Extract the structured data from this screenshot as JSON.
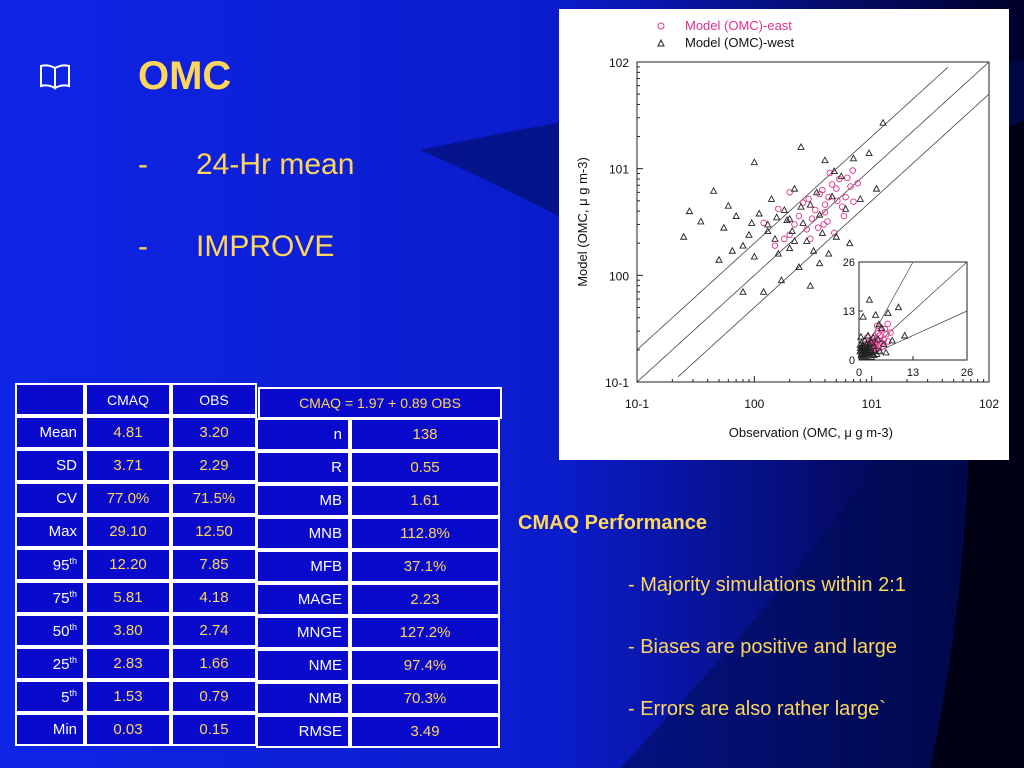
{
  "slide": {
    "title": "OMC",
    "bullets": [
      "24-Hr mean",
      "IMPROVE"
    ],
    "book_icon": "book-icon"
  },
  "stats_table": {
    "headers": [
      "",
      "CMAQ",
      "OBS"
    ],
    "rows": [
      {
        "label": "Mean",
        "sup": "",
        "cmaq": "4.81",
        "obs": "3.20"
      },
      {
        "label": "SD",
        "sup": "",
        "cmaq": "3.71",
        "obs": "2.29"
      },
      {
        "label": "CV",
        "sup": "",
        "cmaq": "77.0%",
        "obs": "71.5%"
      },
      {
        "label": "Max",
        "sup": "",
        "cmaq": "29.10",
        "obs": "12.50"
      },
      {
        "label": "95",
        "sup": "th",
        "cmaq": "12.20",
        "obs": "7.85"
      },
      {
        "label": "75",
        "sup": "th",
        "cmaq": "5.81",
        "obs": "4.18"
      },
      {
        "label": "50",
        "sup": "th",
        "cmaq": "3.80",
        "obs": "2.74"
      },
      {
        "label": "25",
        "sup": "th",
        "cmaq": "2.83",
        "obs": "1.66"
      },
      {
        "label": "5",
        "sup": "th",
        "cmaq": "1.53",
        "obs": "0.79"
      },
      {
        "label": "Min",
        "sup": "",
        "cmaq": "0.03",
        "obs": "0.15"
      }
    ]
  },
  "metrics_table": {
    "equation": "CMAQ  =  1.97 +  0.89  OBS",
    "rows": [
      {
        "label": "n",
        "value": "138"
      },
      {
        "label": "R",
        "value": "0.55"
      },
      {
        "label": "MB",
        "value": "1.61"
      },
      {
        "label": "MNB",
        "value": "112.8%"
      },
      {
        "label": "MFB",
        "value": "37.1%"
      },
      {
        "label": "MAGE",
        "value": "2.23"
      },
      {
        "label": "MNGE",
        "value": "127.2%"
      },
      {
        "label": "NME",
        "value": "97.4%"
      },
      {
        "label": "NMB",
        "value": "70.3%"
      },
      {
        "label": "RMSE",
        "value": "3.49"
      }
    ]
  },
  "performance": {
    "heading": "CMAQ Performance",
    "points": [
      "-  Majority simulations within 2:1",
      "-  Biases are positive and large",
      "-  Errors are also rather large`"
    ]
  },
  "colors": {
    "east": "#e0338c",
    "west": "#222222",
    "text_accent": "#ffd65c",
    "table_bg": "#0a0acc"
  },
  "chart_data": {
    "type": "scatter",
    "xscale": "log",
    "yscale": "log",
    "xlim": [
      0.1,
      100
    ],
    "ylim": [
      0.1,
      100
    ],
    "xlabel": "Observation (OMC, μ g m-3)",
    "ylabel": "Model (OMC, μ g m-3)",
    "xticks": [
      "10-1",
      "100",
      "101",
      "102"
    ],
    "yticks": [
      "10-1",
      "100",
      "101",
      "102"
    ],
    "ref_lines": [
      "1:1",
      "2:1",
      "1:2"
    ],
    "legend_position": "top",
    "series": [
      {
        "name": "Model (OMC)-east",
        "marker": "circle",
        "points": [
          [
            1.2,
            3.1
          ],
          [
            1.6,
            4.2
          ],
          [
            2.0,
            2.4
          ],
          [
            2.4,
            3.6
          ],
          [
            2.9,
            5.2
          ],
          [
            3.3,
            4.1
          ],
          [
            3.8,
            6.3
          ],
          [
            4.2,
            3.2
          ],
          [
            4.6,
            7.1
          ],
          [
            5.1,
            5.0
          ],
          [
            5.6,
            4.4
          ],
          [
            6.2,
            8.2
          ],
          [
            3.0,
            2.2
          ],
          [
            3.5,
            2.8
          ],
          [
            4.0,
            3.9
          ],
          [
            2.6,
            4.8
          ],
          [
            5.0,
            6.5
          ],
          [
            5.8,
            3.6
          ],
          [
            4.4,
            9.1
          ],
          [
            3.1,
            3.4
          ],
          [
            2.2,
            3.0
          ],
          [
            1.8,
            2.2
          ],
          [
            6.0,
            5.4
          ],
          [
            6.6,
            6.8
          ],
          [
            7.0,
            4.9
          ],
          [
            7.6,
            7.3
          ],
          [
            4.8,
            2.5
          ],
          [
            3.6,
            5.8
          ],
          [
            2.8,
            2.7
          ],
          [
            4.0,
            4.6
          ],
          [
            1.5,
            1.9
          ],
          [
            2.0,
            6.0
          ],
          [
            5.3,
            8.0
          ],
          [
            6.9,
            9.6
          ],
          [
            4.3,
            5.4
          ],
          [
            3.9,
            3.0
          ]
        ]
      },
      {
        "name": "Model (OMC)-west",
        "marker": "triangle",
        "points": [
          [
            0.25,
            2.3
          ],
          [
            0.28,
            4.0
          ],
          [
            0.35,
            3.2
          ],
          [
            0.45,
            6.2
          ],
          [
            0.55,
            2.8
          ],
          [
            0.6,
            4.5
          ],
          [
            0.7,
            3.6
          ],
          [
            0.8,
            1.9
          ],
          [
            0.9,
            2.4
          ],
          [
            1.0,
            1.5
          ],
          [
            1.1,
            3.8
          ],
          [
            1.2,
            0.7
          ],
          [
            1.3,
            3.0
          ],
          [
            1.4,
            5.2
          ],
          [
            1.5,
            2.2
          ],
          [
            1.6,
            1.6
          ],
          [
            1.7,
            0.9
          ],
          [
            1.8,
            4.1
          ],
          [
            1.9,
            3.3
          ],
          [
            2.0,
            1.8
          ],
          [
            2.1,
            2.6
          ],
          [
            2.2,
            6.5
          ],
          [
            2.4,
            1.2
          ],
          [
            2.5,
            4.4
          ],
          [
            2.6,
            3.1
          ],
          [
            2.8,
            2.1
          ],
          [
            3.0,
            0.8
          ],
          [
            3.2,
            1.7
          ],
          [
            3.4,
            6.0
          ],
          [
            3.6,
            3.7
          ],
          [
            3.8,
            2.5
          ],
          [
            4.0,
            12.0
          ],
          [
            4.3,
            1.6
          ],
          [
            4.6,
            5.5
          ],
          [
            5.0,
            2.3
          ],
          [
            5.5,
            8.5
          ],
          [
            6.0,
            4.2
          ],
          [
            7.0,
            12.5
          ],
          [
            8.0,
            5.2
          ],
          [
            9.5,
            14.0
          ],
          [
            11.0,
            6.5
          ],
          [
            12.5,
            27.0
          ],
          [
            1.0,
            11.5
          ],
          [
            2.5,
            16.0
          ],
          [
            0.5,
            1.4
          ],
          [
            0.8,
            0.7
          ],
          [
            1.3,
            2.6
          ],
          [
            2.0,
            3.4
          ],
          [
            3.0,
            4.6
          ],
          [
            0.65,
            1.7
          ],
          [
            0.95,
            3.1
          ],
          [
            1.55,
            3.5
          ],
          [
            2.2,
            2.1
          ],
          [
            3.6,
            1.3
          ],
          [
            4.8,
            9.5
          ],
          [
            6.5,
            2.0
          ]
        ]
      }
    ],
    "inset": {
      "xlim": [
        0,
        26
      ],
      "ylim": [
        0,
        26
      ],
      "xticks": [
        "0",
        "13",
        "26"
      ],
      "yticks": [
        "0",
        "13",
        "26"
      ]
    }
  }
}
